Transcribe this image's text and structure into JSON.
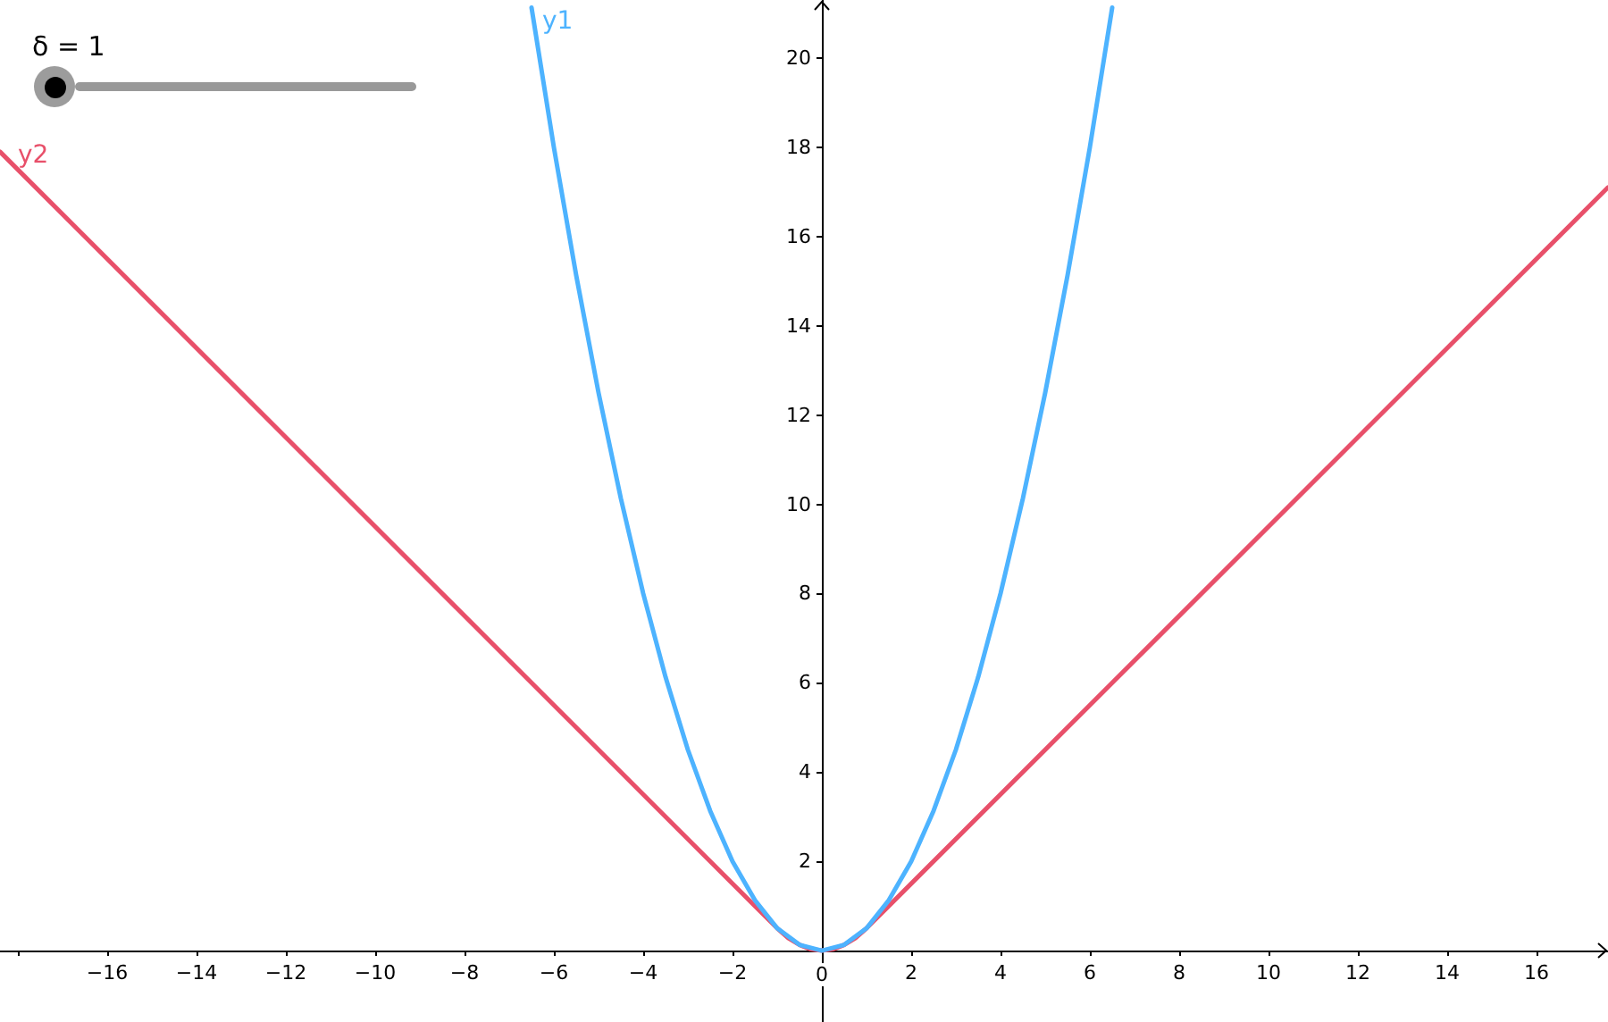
{
  "chart_data": {
    "type": "line",
    "annotations": [
      "δ = 1"
    ],
    "xlim": [
      -18.4,
      17.6
    ],
    "ylim": [
      -1.6,
      21.3
    ],
    "xticks": [
      {
        "value": -18,
        "label": null
      },
      {
        "value": -16,
        "label": "−16"
      },
      {
        "value": -14,
        "label": "−14"
      },
      {
        "value": -12,
        "label": "−12"
      },
      {
        "value": -10,
        "label": "−10"
      },
      {
        "value": -8,
        "label": "−8"
      },
      {
        "value": -6,
        "label": "−6"
      },
      {
        "value": -4,
        "label": "−4"
      },
      {
        "value": -2,
        "label": "−2"
      },
      0,
      2,
      4,
      6,
      8,
      10,
      12,
      14,
      16
    ],
    "yticks": [
      2,
      4,
      6,
      8,
      10,
      12,
      14,
      16,
      18,
      20
    ],
    "grid": false,
    "legend": false,
    "series": [
      {
        "name": "y1",
        "color": "#4db3ff",
        "x": [
          -6.5,
          -6,
          -5.5,
          -5,
          -4.5,
          -4,
          -3.5,
          -3,
          -2.5,
          -2,
          -1.5,
          -1,
          -0.5,
          0,
          0.5,
          1,
          1.5,
          2,
          2.5,
          3,
          3.5,
          4,
          4.5,
          5,
          5.5,
          6,
          6.5
        ],
        "values": [
          21.13,
          18,
          15.13,
          12.5,
          10.13,
          8,
          6.13,
          4.5,
          3.13,
          2,
          1.13,
          0.5,
          0.13,
          0,
          0.13,
          0.5,
          1.13,
          2,
          3.13,
          4.5,
          6.13,
          8,
          10.13,
          12.5,
          15.13,
          18,
          21.13
        ]
      },
      {
        "name": "y2",
        "color": "#e8506a",
        "x": [
          -18.4,
          -1,
          -0.75,
          -0.5,
          -0.25,
          0,
          0.25,
          0.5,
          0.75,
          1,
          17.6
        ],
        "values": [
          17.9,
          0.5,
          0.28,
          0.13,
          0.03,
          0,
          0.03,
          0.13,
          0.28,
          0.5,
          17.1
        ]
      }
    ]
  }
}
